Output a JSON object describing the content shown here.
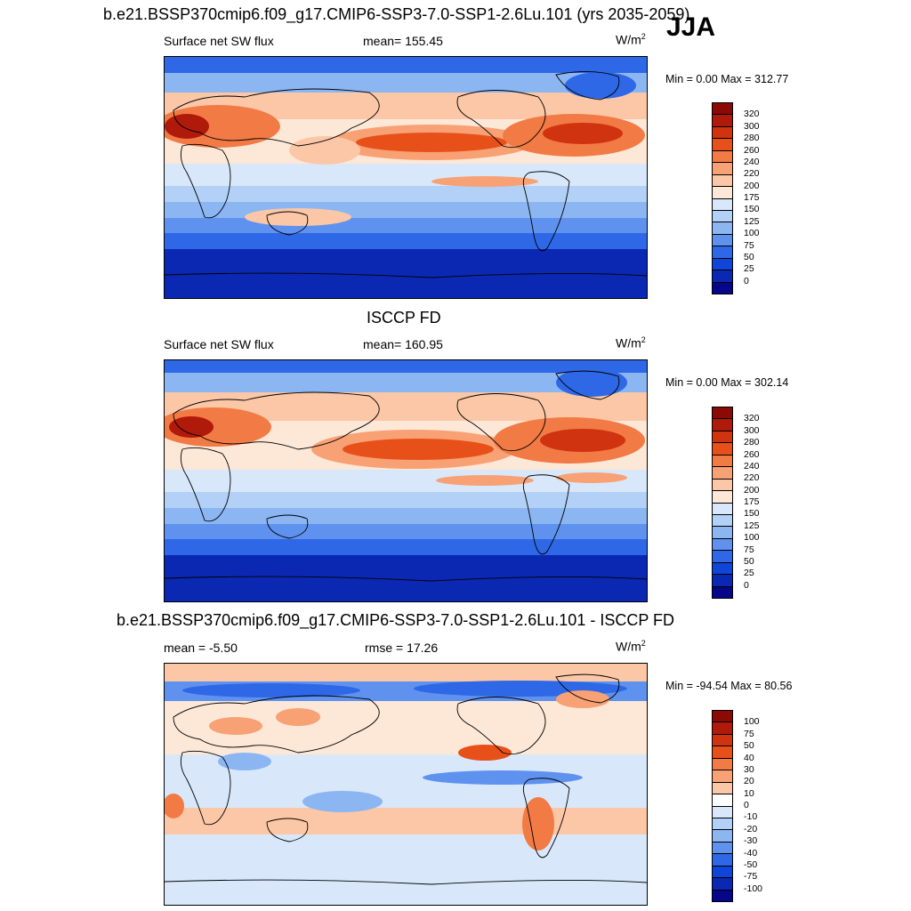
{
  "season": "JJA",
  "chart_data": [
    {
      "type": "heatmap",
      "title": "b.e21.BSSP370cmip6.f09_g17.CMIP6-SSP3-7.0-SSP1-2.6Lu.101 (yrs 2035-2059)",
      "variable": "Surface net SW flux",
      "mean_label": "mean= 155.45",
      "units": "W/m",
      "units_sup": "2",
      "minmax": "Min =   0.00 Max = 312.77",
      "levels": [
        "320",
        "300",
        "280",
        "260",
        "240",
        "220",
        "200",
        "175",
        "150",
        "125",
        "100",
        "75",
        "50",
        "25",
        "0"
      ],
      "colors": [
        "#8b0a05",
        "#b01a0a",
        "#d0330f",
        "#e8501a",
        "#f27a45",
        "#f8a175",
        "#fcc7a6",
        "#fde8d8",
        "#d8e8fa",
        "#b3d1f7",
        "#8cb6f2",
        "#5f92ee",
        "#2e68e6",
        "#0f45d8",
        "#0a28b2",
        "#06068a"
      ]
    },
    {
      "type": "heatmap",
      "title": "ISCCP FD",
      "variable": "Surface net SW flux",
      "mean_label": "mean= 160.95",
      "units": "W/m",
      "units_sup": "2",
      "minmax": "Min =   0.00 Max = 302.14",
      "levels": [
        "320",
        "300",
        "280",
        "260",
        "240",
        "220",
        "200",
        "175",
        "150",
        "125",
        "100",
        "75",
        "50",
        "25",
        "0"
      ],
      "colors": [
        "#8b0a05",
        "#b01a0a",
        "#d0330f",
        "#e8501a",
        "#f27a45",
        "#f8a175",
        "#fcc7a6",
        "#fde8d8",
        "#d8e8fa",
        "#b3d1f7",
        "#8cb6f2",
        "#5f92ee",
        "#2e68e6",
        "#0f45d8",
        "#0a28b2",
        "#06068a"
      ]
    },
    {
      "type": "heatmap",
      "title": "b.e21.BSSP370cmip6.f09_g17.CMIP6-SSP3-7.0-SSP1-2.6Lu.101 - ISCCP FD",
      "mean_label": "mean =  -5.50",
      "rmse_label": "rmse =  17.26",
      "units": "W/m",
      "units_sup": "2",
      "minmax": "Min = -94.54 Max =  80.56",
      "levels": [
        "100",
        "75",
        "50",
        "40",
        "30",
        "20",
        "10",
        "0",
        "-10",
        "-20",
        "-30",
        "-40",
        "-50",
        "-75",
        "-100"
      ],
      "colors": [
        "#8b0a05",
        "#b01a0a",
        "#d0330f",
        "#e8501a",
        "#f27a45",
        "#f8a175",
        "#fcc7a6",
        "#fefefe",
        "#d8e8fa",
        "#b3d1f7",
        "#8cb6f2",
        "#5f92ee",
        "#2e68e6",
        "#0f45d8",
        "#0a28b2",
        "#06068a"
      ]
    }
  ]
}
